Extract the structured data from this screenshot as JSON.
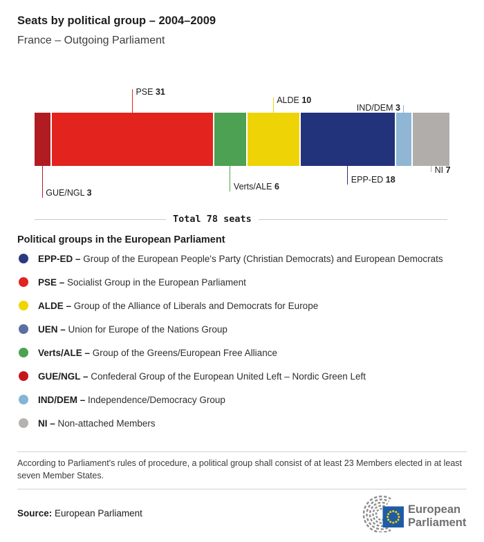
{
  "header": {
    "title": "Seats by political group – 2004–2009",
    "subtitle": "France – Outgoing Parliament"
  },
  "chart_data": {
    "type": "bar",
    "orientation": "horizontal-stacked",
    "title": "Seats by political group – 2004–2009",
    "subtitle": "France – Outgoing Parliament",
    "total_seats": 78,
    "total_label": "Total 78 seats",
    "segments": [
      {
        "group": "GUE/NGL",
        "seats": 3,
        "color": "#b11c22",
        "label_side": "below"
      },
      {
        "group": "PSE",
        "seats": 31,
        "color": "#e2231e",
        "label_side": "above"
      },
      {
        "group": "Verts/ALE",
        "seats": 6,
        "color": "#4da153",
        "label_side": "below"
      },
      {
        "group": "ALDE",
        "seats": 10,
        "color": "#eed406",
        "label_side": "above"
      },
      {
        "group": "EPP-ED",
        "seats": 18,
        "color": "#22327b",
        "label_side": "below"
      },
      {
        "group": "IND/DEM",
        "seats": 3,
        "color": "#8fb6d4",
        "label_side": "above"
      },
      {
        "group": "NI",
        "seats": 7,
        "color": "#b0adab",
        "label_side": "below"
      }
    ]
  },
  "legend": {
    "heading": "Political groups in the European Parliament",
    "separator": "–",
    "items": [
      {
        "code": "EPP-ED",
        "description": "Group of the European People's Party (Christian Democrats) and European Democrats",
        "color": "#2b3a80"
      },
      {
        "code": "PSE",
        "description": "Socialist Group in the European Parliament",
        "color": "#e2231e"
      },
      {
        "code": "ALDE",
        "description": "Group of the Alliance of Liberals and Democrats for Europe",
        "color": "#f0d500"
      },
      {
        "code": "UEN",
        "description": "Union for Europe of the Nations Group",
        "color": "#5b6fa3"
      },
      {
        "code": "Verts/ALE",
        "description": "Group of the Greens/European Free Alliance",
        "color": "#4da153"
      },
      {
        "code": "GUE/NGL",
        "description": "Confederal Group of the European United Left – Nordic Green Left",
        "color": "#c4161c"
      },
      {
        "code": "IND/DEM",
        "description": "Independence/Democracy Group",
        "color": "#85b4d4"
      },
      {
        "code": "NI",
        "description": "Non-attached Members",
        "color": "#b5b2b0"
      }
    ]
  },
  "footnote": "According to Parliament's rules of procedure, a political group shall consist of at least 23 Members elected in at least seven Member States.",
  "source": {
    "label": "Source:",
    "value": "European Parliament"
  },
  "logo": {
    "line1": "European",
    "line2": "Parliament"
  }
}
